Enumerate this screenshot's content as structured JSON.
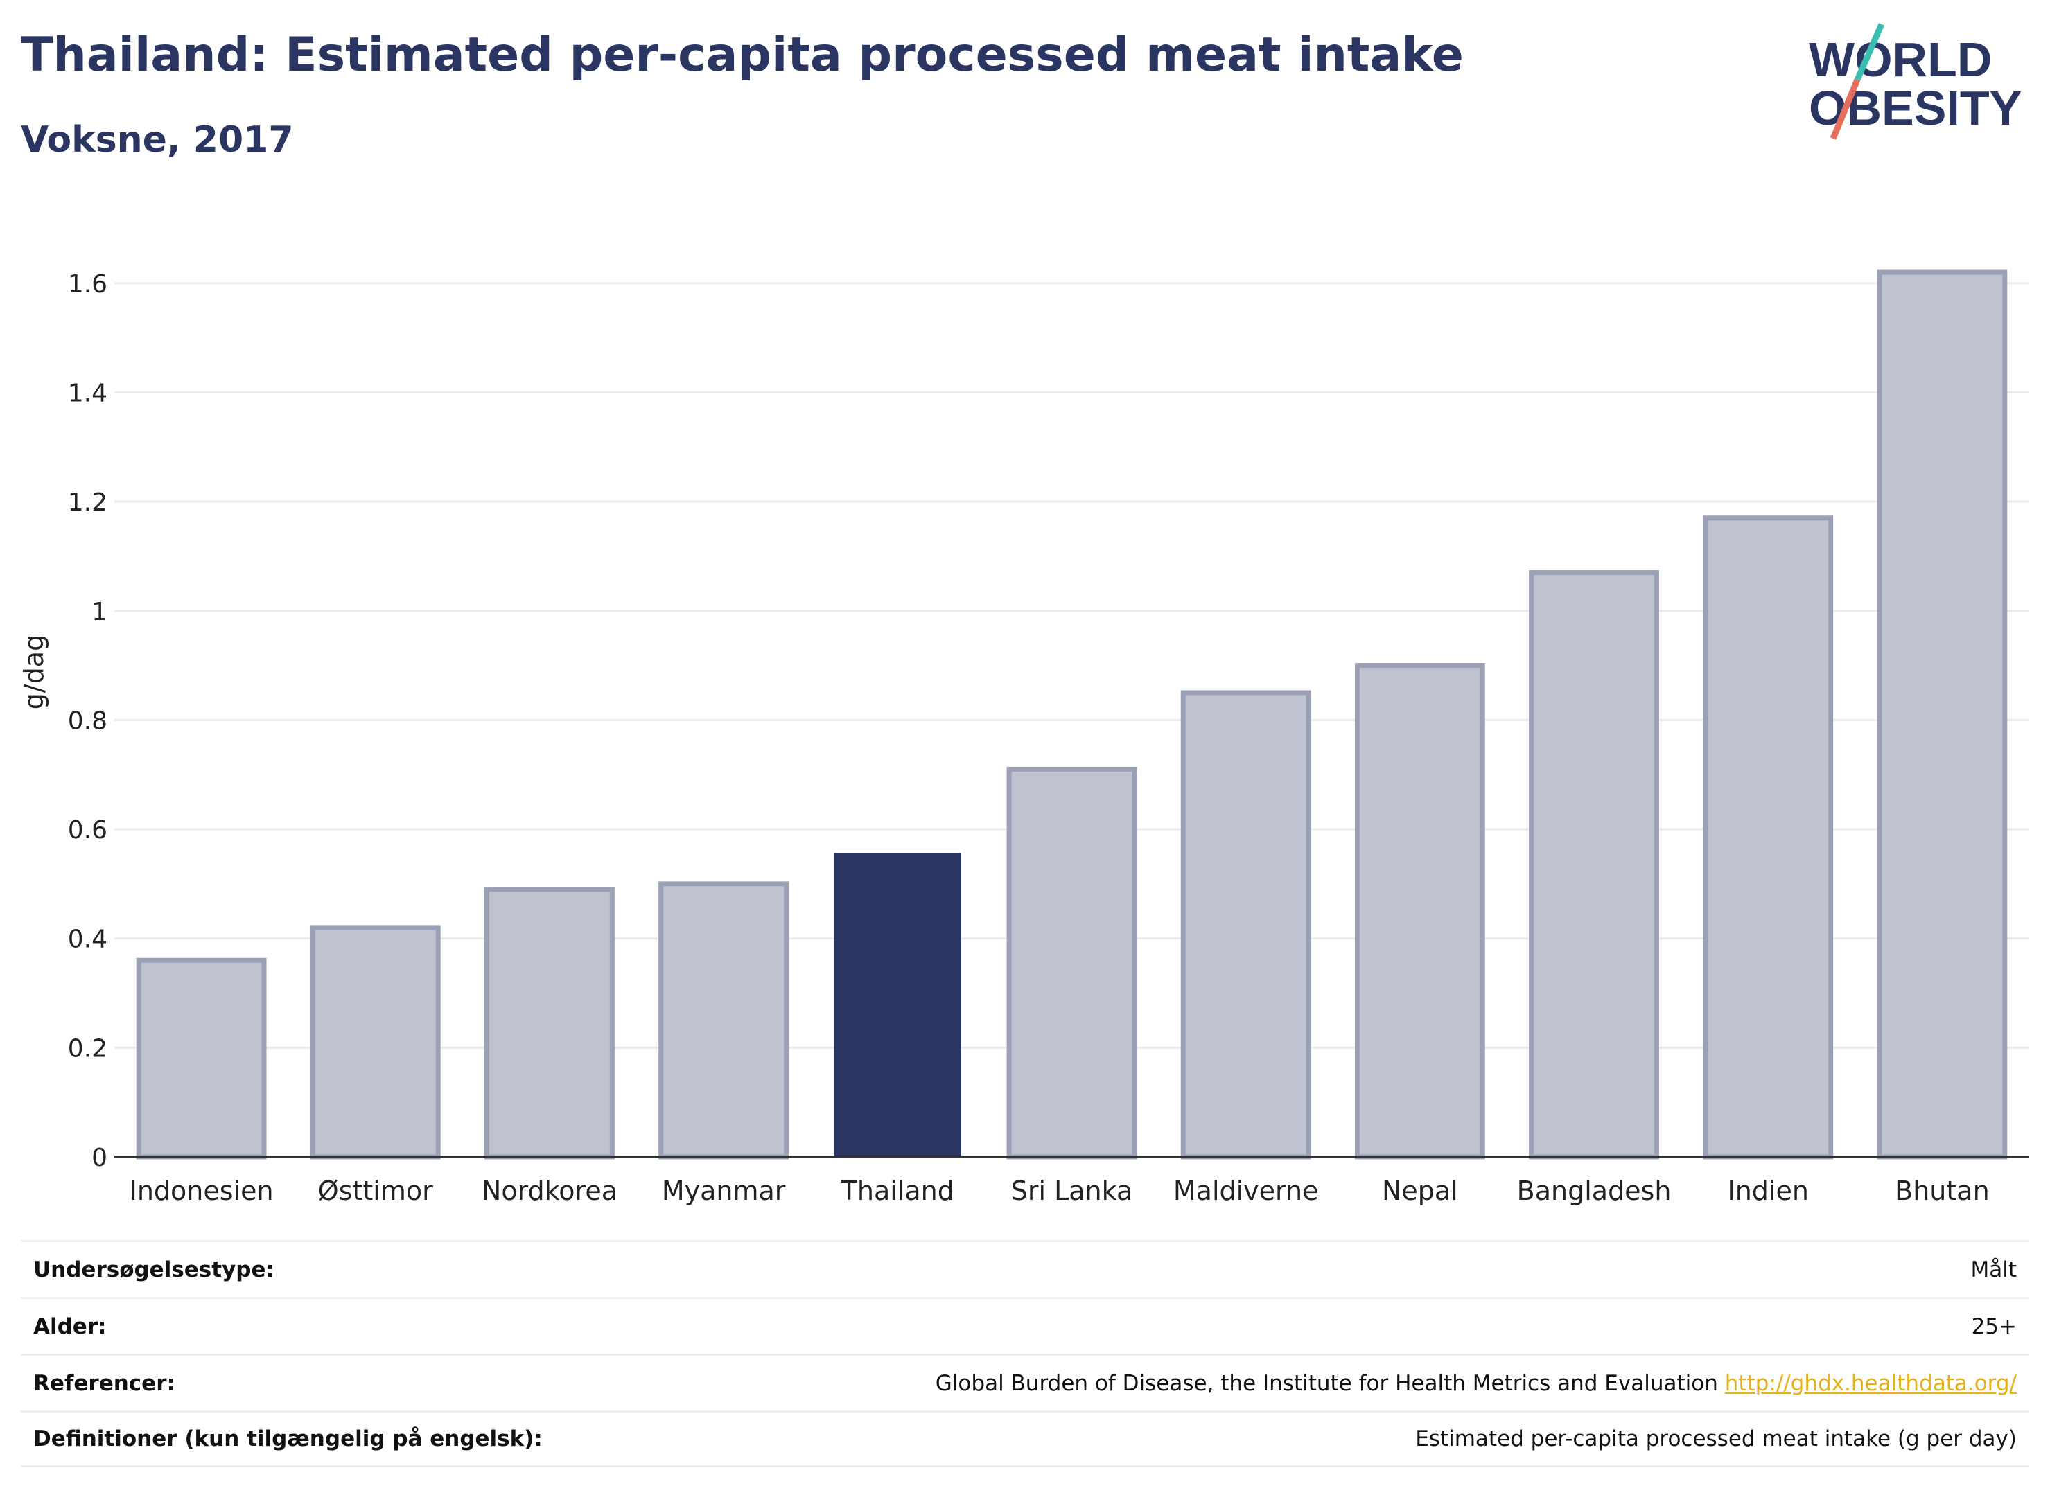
{
  "header": {
    "title": "Thailand: Estimated per-capita processed meat intake",
    "subtitle": "Voksne, 2017"
  },
  "logo": {
    "line1": "WORLD",
    "line2": "OBESITY"
  },
  "colors": {
    "highlight": "#2b3561",
    "bar": "#bfc3d0",
    "bar_outline": "#9aa0b5",
    "axis": "#333333",
    "grid": "#eaeaea"
  },
  "chart_data": {
    "type": "bar",
    "categories": [
      "Indonesien",
      "Østtimor",
      "Nordkorea",
      "Myanmar",
      "Thailand",
      "Sri Lanka",
      "Maldiverne",
      "Nepal",
      "Bangladesh",
      "Indien",
      "Bhutan"
    ],
    "values": [
      0.36,
      0.42,
      0.49,
      0.5,
      0.555,
      0.71,
      0.85,
      0.9,
      1.07,
      1.17,
      1.62
    ],
    "highlight": "Thailand",
    "ylabel": "g/dag",
    "ylim": [
      0,
      1.7
    ],
    "yticks": [
      0,
      0.2,
      0.4,
      0.6,
      0.8,
      1,
      1.2,
      1.4,
      1.6
    ],
    "ytick_labels": [
      "0",
      "0.2",
      "0.4",
      "0.6",
      "0.8",
      "1",
      "1.2",
      "1.4",
      "1.6"
    ],
    "grid": true
  },
  "info": [
    {
      "label": "Undersøgelsestype:",
      "value": "Målt"
    },
    {
      "label": "Alder:",
      "value": "25+"
    },
    {
      "label": "Referencer:",
      "value": "Global Burden of Disease, the Institute for Health Metrics and Evaluation",
      "link": "http://ghdx.healthdata.org/"
    },
    {
      "label": "Definitioner (kun tilgængelig på engelsk):",
      "value": "Estimated per-capita processed meat intake (g per day)"
    }
  ]
}
